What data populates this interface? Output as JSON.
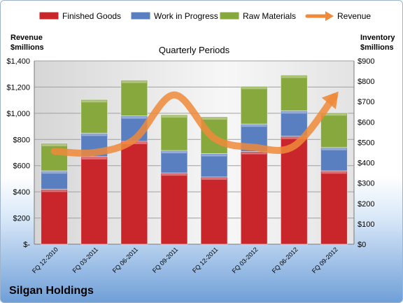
{
  "company": "Silgan Holdings",
  "chart_data": {
    "type": "bar",
    "stacked": true,
    "title": "Quarterly Periods",
    "y_left_label": [
      "Revenue",
      "$millions"
    ],
    "y_right_label": [
      "Inventory",
      "$millions"
    ],
    "categories": [
      "FQ 12-2010",
      "FQ 03-2011",
      "FQ 06-2011",
      "FQ 09-2011",
      "FQ 12-2011",
      "FQ 03-2012",
      "FQ 06-2012",
      "FQ 09-2012"
    ],
    "series": [
      {
        "name": "Finished Goods",
        "axis": "right",
        "color": "#c9262c",
        "values": [
          270,
          430,
          505,
          350,
          330,
          455,
          530,
          360
        ]
      },
      {
        "name": "Work in Progress",
        "axis": "right",
        "color": "#5a7fc0",
        "values": [
          90,
          115,
          125,
          110,
          115,
          135,
          125,
          115
        ]
      },
      {
        "name": "Raw Materials",
        "axis": "right",
        "color": "#86a83c",
        "values": [
          135,
          165,
          175,
          175,
          180,
          185,
          175,
          170
        ]
      }
    ],
    "line": {
      "name": "Revenue",
      "axis": "left",
      "color": "#ee8a3a",
      "values": [
        710,
        700,
        800,
        1140,
        810,
        740,
        750,
        1125
      ]
    },
    "y_left": {
      "min": 0,
      "max": 1400,
      "step": 200,
      "ticks": [
        "$-",
        "$200",
        "$400",
        "$600",
        "$800",
        "$1,000",
        "$1,200",
        "$1,400"
      ]
    },
    "y_right": {
      "min": 0,
      "max": 900,
      "step": 100,
      "ticks": [
        "$0",
        "$100",
        "$200",
        "$300",
        "$400",
        "$500",
        "$600",
        "$700",
        "$800",
        "$900"
      ]
    },
    "legend_position": "top",
    "grid": true
  }
}
